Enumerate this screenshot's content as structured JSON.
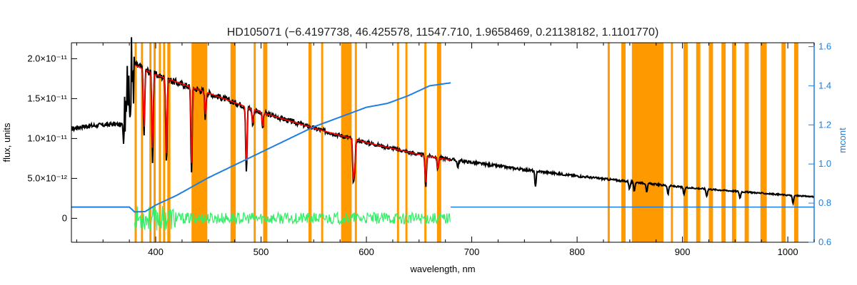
{
  "chart_data": {
    "type": "line",
    "title": "HD105071   (−6.4197738, 46.425578, 11547.710, 1.9658469, 0.21138182, 1.1101770)",
    "xlabel": "wavelength, nm",
    "ylabel": "flux, units",
    "y2label": "mcont",
    "xlim": [
      320,
      1025
    ],
    "ylim": [
      -3e-12,
      2.2e-11
    ],
    "y2lim": [
      0.6,
      1.62
    ],
    "x_ticks": [
      400,
      500,
      600,
      700,
      800,
      900,
      1000
    ],
    "y_ticks": [
      {
        "value": 0,
        "label": "0"
      },
      {
        "value": 5e-12,
        "label": "5.0×10⁻¹²"
      },
      {
        "value": 1e-11,
        "label": "1.0×10⁻¹¹"
      },
      {
        "value": 1.5e-11,
        "label": "1.5×10⁻¹¹"
      },
      {
        "value": 2e-11,
        "label": "2.0×10⁻¹¹"
      }
    ],
    "y2_ticks": [
      {
        "value": 0.6,
        "label": "0.6"
      },
      {
        "value": 0.8,
        "label": "0.8"
      },
      {
        "value": 1.0,
        "label": "1.0"
      },
      {
        "value": 1.2,
        "label": "1.2"
      },
      {
        "value": 1.4,
        "label": "1.4"
      },
      {
        "value": 1.6,
        "label": "1.6"
      }
    ],
    "grid": false,
    "colors": {
      "observed": "#000000",
      "model": "#ff0000",
      "residual": "#33ee66",
      "mcont": "#1e7fe0",
      "mask": "#ff9900",
      "right_axis": "#1e7fe0",
      "left_axis": "#000000"
    },
    "masked_bands": [
      [
        380,
        382
      ],
      [
        386,
        388
      ],
      [
        394,
        396
      ],
      [
        398,
        400
      ],
      [
        403,
        405
      ],
      [
        407,
        409
      ],
      [
        411,
        414
      ],
      [
        434,
        449
      ],
      [
        471,
        476
      ],
      [
        493,
        495
      ],
      [
        502,
        506
      ],
      [
        545,
        548
      ],
      [
        557,
        559
      ],
      [
        576,
        586
      ],
      [
        589,
        591
      ],
      [
        629,
        631
      ],
      [
        637,
        639
      ],
      [
        655,
        657
      ],
      [
        667,
        671
      ],
      [
        829,
        831
      ],
      [
        842,
        846
      ],
      [
        852,
        882
      ],
      [
        889,
        891
      ],
      [
        901,
        905
      ],
      [
        913,
        917
      ],
      [
        925,
        929
      ],
      [
        937,
        941
      ],
      [
        947,
        951
      ],
      [
        959,
        963
      ],
      [
        974,
        980
      ],
      [
        994,
        998
      ],
      [
        1006,
        1010
      ]
    ],
    "observed_flux": {
      "x": [
        320,
        330,
        340,
        350,
        360,
        368,
        372,
        376,
        380,
        385,
        390,
        400,
        420,
        450,
        500,
        550,
        600,
        650,
        700,
        750,
        800,
        850,
        900,
        950,
        1000,
        1025
      ],
      "y": [
        1.12e-11,
        1.15e-11,
        1.16e-11,
        1.17e-11,
        1.18e-11,
        1.17e-11,
        1.45e-11,
        1.75e-11,
        1.93e-11,
        1.9e-11,
        1.86e-11,
        1.8e-11,
        1.7e-11,
        1.57e-11,
        1.33e-11,
        1.13e-11,
        9.5e-12,
        8e-12,
        7e-12,
        6.1e-12,
        5.3e-12,
        4.6e-12,
        3.9e-12,
        3.4e-12,
        2.9e-12,
        2.7e-12
      ]
    },
    "model_flux": {
      "x": [
        380,
        400,
        450,
        500,
        550,
        600,
        650,
        680
      ],
      "y": [
        1.92e-11,
        1.8e-11,
        1.57e-11,
        1.33e-11,
        1.13e-11,
        9.5e-12,
        8e-12,
        7.3e-12
      ]
    },
    "absorption_lines": [
      {
        "x": 388.9,
        "depth": 0.45
      },
      {
        "x": 397.0,
        "depth": 0.6
      },
      {
        "x": 410.2,
        "depth": 0.6
      },
      {
        "x": 434.0,
        "depth": 0.65
      },
      {
        "x": 447.1,
        "depth": 0.2
      },
      {
        "x": 486.1,
        "depth": 0.6
      },
      {
        "x": 492.2,
        "depth": 0.15
      },
      {
        "x": 501.6,
        "depth": 0.15
      },
      {
        "x": 587.6,
        "depth": 0.55
      },
      {
        "x": 589.0,
        "depth": 0.35
      },
      {
        "x": 656.3,
        "depth": 0.5
      },
      {
        "x": 667.8,
        "depth": 0.2
      },
      {
        "x": 686.7,
        "depth": 0.12
      },
      {
        "x": 760.5,
        "depth": 0.35
      },
      {
        "x": 849.8,
        "depth": 0.2
      },
      {
        "x": 854.2,
        "depth": 0.25
      },
      {
        "x": 866.2,
        "depth": 0.25
      },
      {
        "x": 886.3,
        "depth": 0.25
      },
      {
        "x": 901.5,
        "depth": 0.25
      },
      {
        "x": 923.0,
        "depth": 0.25
      },
      {
        "x": 954.6,
        "depth": 0.25
      },
      {
        "x": 1004.9,
        "depth": 0.35
      }
    ],
    "residuals": {
      "x_range": [
        380,
        680
      ],
      "amplitude": 1.6e-12
    },
    "mcont": {
      "x": [
        320,
        375,
        380,
        390,
        400,
        420,
        450,
        500,
        550,
        560,
        580,
        600,
        620,
        640,
        660,
        680
      ],
      "y": [
        0.78,
        0.78,
        0.755,
        0.757,
        0.79,
        0.84,
        0.93,
        1.06,
        1.19,
        1.21,
        1.25,
        1.29,
        1.31,
        1.35,
        1.4,
        1.415
      ]
    },
    "mcont_flat": {
      "x": [
        680,
        1025
      ],
      "y": [
        0.78,
        0.78
      ]
    }
  }
}
